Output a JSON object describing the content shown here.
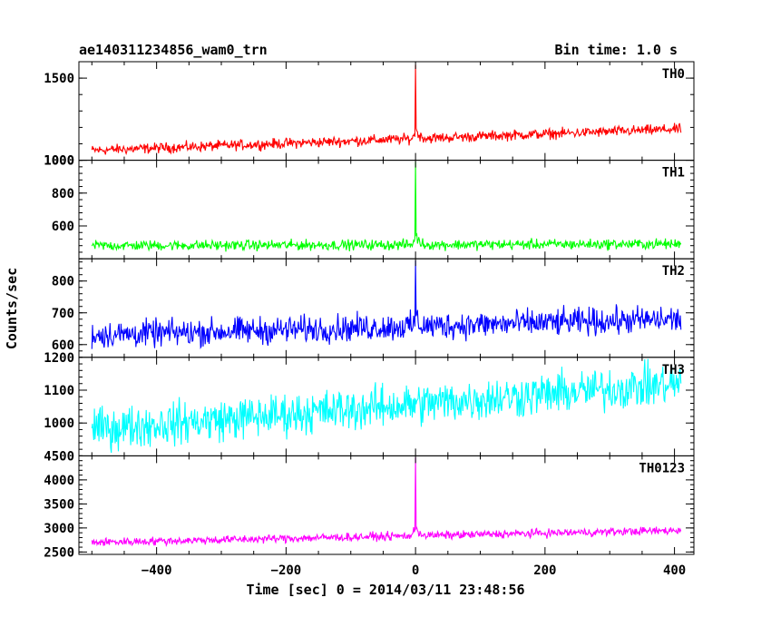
{
  "title_left": "ae140311234856_wam0_trn",
  "title_right": "Bin time: 1.0 s",
  "chart_data": {
    "type": "line",
    "xlabel": "Time [sec] 0 = 2014/03/11 23:48:56",
    "ylabel": "Counts/sec",
    "xlim": [
      -520,
      430
    ],
    "x_ticks": [
      -400,
      -200,
      0,
      200,
      400
    ],
    "x_tick_labels": [
      "−400",
      "−200",
      "0",
      "200",
      "400"
    ],
    "x_range_data": [
      -500,
      410
    ],
    "panels": [
      {
        "name": "TH0",
        "color": "#ff0000",
        "ylim": [
          1000,
          1600
        ],
        "y_ticks": [
          1500,
          1000
        ],
        "y_tick_labels": [
          "1500",
          "1000"
        ],
        "base_start": 1060,
        "base_end": 1190,
        "noise": 22,
        "burst_peak": 1580,
        "burst_time": 0
      },
      {
        "name": "TH1",
        "color": "#00ff00",
        "ylim": [
          400,
          1000
        ],
        "y_ticks": [
          800,
          600
        ],
        "y_tick_labels": [
          "800",
          "600"
        ],
        "top_label": "1000",
        "base_start": 480,
        "base_end": 490,
        "noise": 22,
        "burst_peak": 990,
        "burst_time": 0
      },
      {
        "name": "TH2",
        "color": "#0000ff",
        "ylim": [
          560,
          870
        ],
        "y_ticks": [
          800,
          700,
          600
        ],
        "y_tick_labels": [
          "800",
          "700",
          "600"
        ],
        "base_start": 630,
        "base_end": 680,
        "noise": 30,
        "burst_peak": 865,
        "burst_time": 0
      },
      {
        "name": "TH3",
        "color": "#00ffff",
        "ylim": [
          900,
          1200
        ],
        "y_ticks": [
          1100,
          1000
        ],
        "y_tick_labels": [
          "1100",
          "1000"
        ],
        "top_label": "1200",
        "base_start": 980,
        "base_end": 1120,
        "noise": 45,
        "burst_peak": 0,
        "burst_time": 0
      },
      {
        "name": "TH0123",
        "color": "#ff00ff",
        "ylim": [
          2450,
          4500
        ],
        "y_ticks": [
          4000,
          3500,
          3000,
          2500
        ],
        "y_tick_labels": [
          "4000",
          "3500",
          "3000",
          "2500"
        ],
        "top_label": "4500",
        "base_start": 2700,
        "base_end": 2950,
        "noise": 60,
        "burst_peak": 4470,
        "burst_time": 0
      }
    ]
  }
}
